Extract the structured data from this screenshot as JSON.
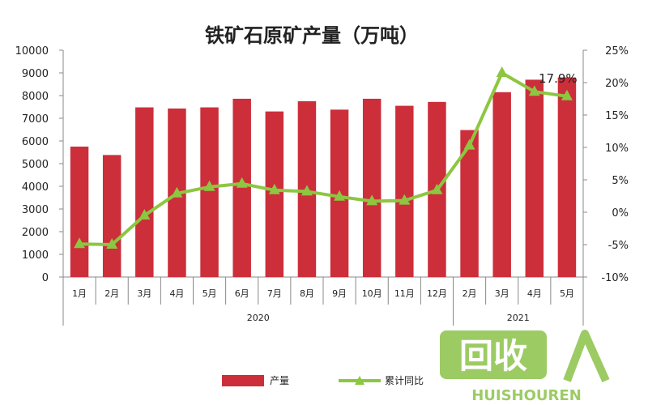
{
  "chart_data": {
    "type": "bar+line",
    "title": "铁矿石原矿产量（万吨）",
    "categories": [
      "1月",
      "2月",
      "3月",
      "4月",
      "5月",
      "6月",
      "7月",
      "8月",
      "9月",
      "10月",
      "11月",
      "12月",
      "2月",
      "3月",
      "4月",
      "5月"
    ],
    "year_groups": [
      {
        "label": "2020",
        "start": 0,
        "end": 11
      },
      {
        "label": "2021",
        "start": 12,
        "end": 15
      }
    ],
    "series": [
      {
        "name": "产量",
        "type": "bar",
        "axis": "left",
        "color": "#cc2e3a",
        "values": [
          5750,
          5380,
          7480,
          7430,
          7480,
          7860,
          7300,
          7750,
          7380,
          7860,
          7550,
          7720,
          6480,
          8150,
          8700,
          8800
        ]
      },
      {
        "name": "累计同比",
        "type": "line",
        "axis": "right",
        "color": "#8dc641",
        "values": [
          -4.9,
          -5.0,
          -0.5,
          2.9,
          3.9,
          4.4,
          3.4,
          3.2,
          2.4,
          1.7,
          1.8,
          3.4,
          10.3,
          21.5,
          18.6,
          17.9
        ]
      }
    ],
    "y_left": {
      "min": 0,
      "max": 10000,
      "ticks": [
        "0",
        "1000",
        "2000",
        "3000",
        "4000",
        "5000",
        "6000",
        "7000",
        "8000",
        "9000",
        "10000"
      ]
    },
    "y_right": {
      "min": -10,
      "max": 25,
      "ticks": [
        "-10%",
        "-5%",
        "0%",
        "5%",
        "10%",
        "15%",
        "20%",
        "25%"
      ]
    },
    "annotation": "17.9%",
    "legend": [
      "产量",
      "累计同比"
    ]
  },
  "watermark": {
    "cn": "回收",
    "en": "HUISHOUREN"
  }
}
